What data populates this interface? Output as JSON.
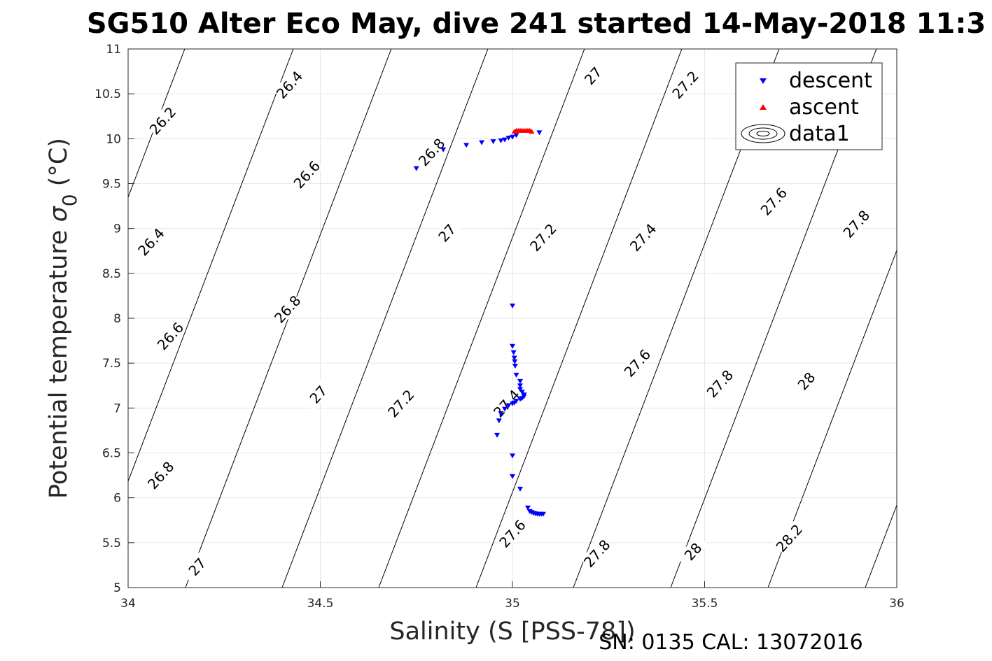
{
  "chart_data": {
    "type": "scatter",
    "title": "SG510 Alter Eco May, dive 241 started 14-May-2018 11:3",
    "xlabel": "Salinity (S [PSS-78])",
    "ylabel_main": "Potential temperature ",
    "ylabel_sigma": "σ",
    "ylabel_sub": "0",
    "ylabel_unit": " (°C)",
    "xlim": [
      34,
      36
    ],
    "ylim": [
      5,
      11
    ],
    "x_ticks": [
      "34",
      "34.5",
      "35",
      "35.5",
      "36"
    ],
    "y_ticks": [
      "5",
      "5.5",
      "6",
      "6.5",
      "7",
      "7.5",
      "8",
      "8.5",
      "9",
      "9.5",
      "10",
      "10.5",
      "11"
    ],
    "grid": true,
    "legend_position": "top-right",
    "annotation": "SN: 0135  CAL: 13072016",
    "series": [
      {
        "name": "descent",
        "marker": "triangle-down",
        "color": "#0000ff",
        "points": [
          [
            34.75,
            9.67
          ],
          [
            34.82,
            9.88
          ],
          [
            34.88,
            9.93
          ],
          [
            34.92,
            9.96
          ],
          [
            34.95,
            9.97
          ],
          [
            34.97,
            9.98
          ],
          [
            34.98,
            9.99
          ],
          [
            34.99,
            10.01
          ],
          [
            35.0,
            10.02
          ],
          [
            35.01,
            10.04
          ],
          [
            35.07,
            10.07
          ],
          [
            35.0,
            8.14
          ],
          [
            35.0,
            7.69
          ],
          [
            35.003,
            7.62
          ],
          [
            35.005,
            7.56
          ],
          [
            35.006,
            7.52
          ],
          [
            35.007,
            7.47
          ],
          [
            35.01,
            7.37
          ],
          [
            35.02,
            7.3
          ],
          [
            35.02,
            7.25
          ],
          [
            35.02,
            7.21
          ],
          [
            35.025,
            7.18
          ],
          [
            35.03,
            7.15
          ],
          [
            35.03,
            7.13
          ],
          [
            35.025,
            7.11
          ],
          [
            35.02,
            7.1
          ],
          [
            35.01,
            7.08
          ],
          [
            35.005,
            7.06
          ],
          [
            35.0,
            7.05
          ],
          [
            34.99,
            7.03
          ],
          [
            34.98,
            6.99
          ],
          [
            34.97,
            6.94
          ],
          [
            34.965,
            6.86
          ],
          [
            34.96,
            6.7
          ],
          [
            35.0,
            6.47
          ],
          [
            35.0,
            6.24
          ],
          [
            35.02,
            6.1
          ],
          [
            35.04,
            5.89
          ],
          [
            35.045,
            5.85
          ],
          [
            35.05,
            5.84
          ],
          [
            35.055,
            5.83
          ],
          [
            35.06,
            5.825
          ],
          [
            35.065,
            5.82
          ],
          [
            35.07,
            5.82
          ],
          [
            35.075,
            5.82
          ],
          [
            35.08,
            5.82
          ]
        ]
      },
      {
        "name": "ascent",
        "marker": "triangle-up",
        "color": "#ff0000",
        "points": [
          [
            35.005,
            10.08
          ],
          [
            35.01,
            10.09
          ],
          [
            35.015,
            10.09
          ],
          [
            35.02,
            10.09
          ],
          [
            35.025,
            10.09
          ],
          [
            35.03,
            10.09
          ],
          [
            35.035,
            10.09
          ],
          [
            35.04,
            10.09
          ],
          [
            35.045,
            10.09
          ],
          [
            35.05,
            10.08
          ]
        ]
      },
      {
        "name": "data1",
        "type": "contour",
        "color": "#000000"
      }
    ],
    "contour_labels": [
      {
        "text": "26.2",
        "x": 34.09,
        "y": 10.2,
        "angle": -48
      },
      {
        "text": "26.4",
        "x": 34.42,
        "y": 10.6,
        "angle": -48
      },
      {
        "text": "26.4",
        "x": 34.06,
        "y": 8.85,
        "angle": -48
      },
      {
        "text": "26.6",
        "x": 34.465,
        "y": 9.6,
        "angle": -48
      },
      {
        "text": "26.6",
        "x": 34.11,
        "y": 7.8,
        "angle": -48
      },
      {
        "text": "26.8",
        "x": 34.79,
        "y": 9.85,
        "angle": -48
      },
      {
        "text": "26.8",
        "x": 34.415,
        "y": 8.1,
        "angle": -48
      },
      {
        "text": "26.8",
        "x": 34.085,
        "y": 6.25,
        "angle": -48
      },
      {
        "text": "27",
        "x": 35.21,
        "y": 10.7,
        "angle": -48
      },
      {
        "text": "27",
        "x": 34.83,
        "y": 8.95,
        "angle": -48
      },
      {
        "text": "27",
        "x": 34.495,
        "y": 7.15,
        "angle": -48
      },
      {
        "text": "27",
        "x": 34.18,
        "y": 5.23,
        "angle": -48
      },
      {
        "text": "27.2",
        "x": 35.45,
        "y": 10.6,
        "angle": -48
      },
      {
        "text": "27.2",
        "x": 35.08,
        "y": 8.9,
        "angle": -48
      },
      {
        "text": "27.2",
        "x": 34.71,
        "y": 7.05,
        "angle": -48
      },
      {
        "text": "27.4",
        "x": 35.34,
        "y": 8.9,
        "angle": -48
      },
      {
        "text": "27.4",
        "x": 34.985,
        "y": 7.05,
        "angle": -48
      },
      {
        "text": "27.6",
        "x": 35.68,
        "y": 9.3,
        "angle": -48
      },
      {
        "text": "27.6",
        "x": 35.325,
        "y": 7.5,
        "angle": -48
      },
      {
        "text": "27.6",
        "x": 35.0,
        "y": 5.6,
        "angle": -48
      },
      {
        "text": "27.8",
        "x": 35.895,
        "y": 9.05,
        "angle": -48
      },
      {
        "text": "27.8",
        "x": 35.54,
        "y": 7.27,
        "angle": -48
      },
      {
        "text": "27.8",
        "x": 35.22,
        "y": 5.38,
        "angle": -48
      },
      {
        "text": "28",
        "x": 35.765,
        "y": 7.3,
        "angle": -48
      },
      {
        "text": "28",
        "x": 35.47,
        "y": 5.4,
        "angle": -48
      },
      {
        "text": "28.2",
        "x": 35.72,
        "y": 5.55,
        "angle": -48
      }
    ]
  }
}
